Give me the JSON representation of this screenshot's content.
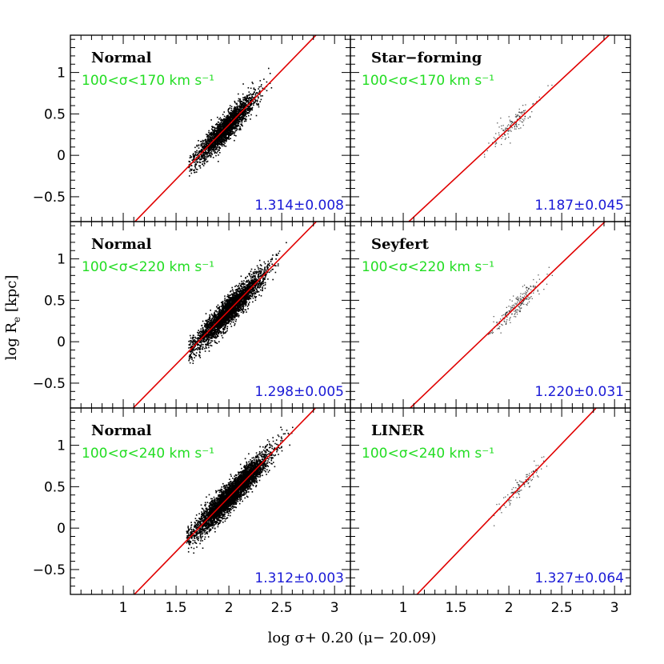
{
  "figure": {
    "xlabel": "log σ+ 0.20 (μ− 20.09)",
    "ylabel_main": "log R",
    "ylabel_sub": "e",
    "ylabel_unit": "[kpc]",
    "colors": {
      "fit_line": "#e00000",
      "range_text": "#22dd22",
      "slope_text": "#1a1ad6",
      "points": "#000000"
    }
  },
  "chart_data": [
    {
      "type": "scatter",
      "row": 0,
      "col": 0,
      "title": "Normal",
      "range_label": "100<σ<170 km s⁻¹",
      "slope_label": "1.314±0.008",
      "density": "dense",
      "n_points": 2200,
      "x_center": 1.97,
      "x_spread": 0.14,
      "y_spread": 0.08,
      "x_range_pts": [
        1.62,
        2.42
      ],
      "fit": {
        "slope": 1.314,
        "intercept": -2.26
      },
      "xlim": [
        0.5,
        3.15
      ],
      "ylim": [
        -0.8,
        1.45
      ],
      "xticks": [
        1,
        1.5,
        2,
        2.5,
        3
      ],
      "yticks": [
        -0.5,
        0,
        0.5,
        1
      ],
      "ytick_labels": [
        "−0.5",
        "0",
        "0.5",
        "1"
      ]
    },
    {
      "type": "scatter",
      "row": 0,
      "col": 1,
      "title": "Star−forming",
      "range_label": "100<σ<170 km s⁻¹",
      "slope_label": "1.187±0.045",
      "density": "sparse",
      "n_points": 130,
      "x_center": 2.05,
      "x_spread": 0.11,
      "y_spread": 0.06,
      "x_range_pts": [
        1.72,
        2.42
      ],
      "fit": {
        "slope": 1.187,
        "intercept": -2.05
      },
      "xlim": [
        0.5,
        3.15
      ],
      "ylim": [
        -0.8,
        1.45
      ],
      "xticks": [
        1,
        1.5,
        2,
        2.5,
        3
      ],
      "yticks": [
        -0.5,
        0,
        0.5,
        1
      ]
    },
    {
      "type": "scatter",
      "row": 1,
      "col": 0,
      "title": "Normal",
      "range_label": "100<σ<220 km s⁻¹",
      "slope_label": "1.298±0.005",
      "density": "dense",
      "n_points": 3200,
      "x_center": 2.0,
      "x_spread": 0.16,
      "y_spread": 0.08,
      "x_range_pts": [
        1.62,
        2.58
      ],
      "fit": {
        "slope": 1.298,
        "intercept": -2.22
      },
      "xlim": [
        0.5,
        3.15
      ],
      "ylim": [
        -0.8,
        1.45
      ],
      "xticks": [
        1,
        1.5,
        2,
        2.5,
        3
      ],
      "yticks": [
        -0.5,
        0,
        0.5,
        1
      ],
      "ytick_labels": [
        "−0.5",
        "0",
        "0.5",
        "1"
      ]
    },
    {
      "type": "scatter",
      "row": 1,
      "col": 1,
      "title": "Seyfert",
      "range_label": "100<σ<220 km s⁻¹",
      "slope_label": "1.220±0.031",
      "density": "sparse",
      "n_points": 210,
      "x_center": 2.08,
      "x_spread": 0.12,
      "y_spread": 0.06,
      "x_range_pts": [
        1.72,
        2.45
      ],
      "fit": {
        "slope": 1.22,
        "intercept": -2.1
      },
      "xlim": [
        0.5,
        3.15
      ],
      "ylim": [
        -0.8,
        1.45
      ],
      "xticks": [
        1,
        1.5,
        2,
        2.5,
        3
      ],
      "yticks": [
        -0.5,
        0,
        0.5,
        1
      ]
    },
    {
      "type": "scatter",
      "row": 2,
      "col": 0,
      "title": "Normal",
      "range_label": "100<σ<240 km s⁻¹",
      "slope_label": "1.312±0.003",
      "density": "dense",
      "n_points": 4200,
      "x_center": 2.02,
      "x_spread": 0.17,
      "y_spread": 0.08,
      "x_range_pts": [
        1.6,
        2.62
      ],
      "fit": {
        "slope": 1.312,
        "intercept": -2.25
      },
      "xlim": [
        0.5,
        3.15
      ],
      "ylim": [
        -0.8,
        1.45
      ],
      "xticks": [
        1,
        1.5,
        2,
        2.5,
        3
      ],
      "xtick_labels": [
        "1",
        "1.5",
        "2",
        "2.5",
        "3"
      ],
      "yticks": [
        -0.5,
        0,
        0.5,
        1
      ],
      "ytick_labels": [
        "−0.5",
        "0",
        "0.5",
        "1"
      ]
    },
    {
      "type": "scatter",
      "row": 2,
      "col": 1,
      "title": "LINER",
      "range_label": "100<σ<240 km s⁻¹",
      "slope_label": "1.327±0.064",
      "density": "sparse",
      "n_points": 110,
      "x_center": 2.12,
      "x_spread": 0.11,
      "y_spread": 0.06,
      "x_range_pts": [
        1.78,
        2.45
      ],
      "fit": {
        "slope": 1.327,
        "intercept": -2.3
      },
      "xlim": [
        0.5,
        3.15
      ],
      "ylim": [
        -0.8,
        1.45
      ],
      "xticks": [
        1,
        1.5,
        2,
        2.5,
        3
      ],
      "xtick_labels": [
        "1",
        "1.5",
        "2",
        "2.5",
        "3"
      ],
      "yticks": [
        -0.5,
        0,
        0.5,
        1
      ]
    }
  ]
}
